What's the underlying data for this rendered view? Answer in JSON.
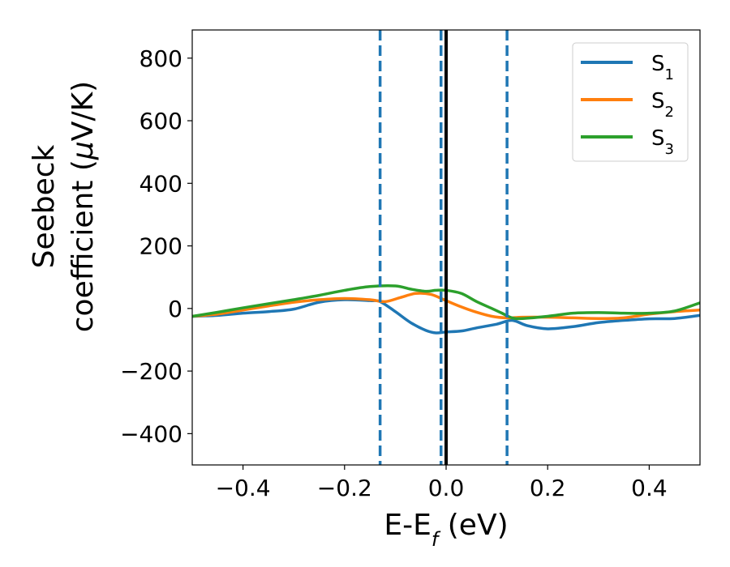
{
  "chart_data": {
    "type": "line",
    "xlabel": {
      "main": "E-E",
      "sub": "f",
      "unit": " (eV)"
    },
    "ylabel": {
      "line1": "Seebeck",
      "line2_a": "coefficient  (",
      "mu": "μ",
      "line2_b": "V/K)"
    },
    "xlim": [
      -0.5,
      0.5
    ],
    "ylim": [
      -500,
      890
    ],
    "xticks": [
      -0.4,
      -0.2,
      0.0,
      0.2,
      0.4
    ],
    "xtick_labels": [
      "−0.4",
      "−0.2",
      "0.0",
      "0.2",
      "0.4"
    ],
    "yticks": [
      -400,
      -200,
      0,
      200,
      400,
      600,
      800
    ],
    "ytick_labels": [
      "−400",
      "−200",
      "0",
      "200",
      "400",
      "600",
      "800"
    ],
    "grid": false,
    "legend_placement": "top-right",
    "vlines": [
      {
        "x": -0.13,
        "style": "dashed",
        "color": "#1f77b4"
      },
      {
        "x": -0.01,
        "style": "dashed",
        "color": "#1f77b4"
      },
      {
        "x": 0.0,
        "style": "solid",
        "color": "#000000"
      },
      {
        "x": 0.12,
        "style": "dashed",
        "color": "#1f77b4"
      }
    ],
    "series": [
      {
        "name": "S",
        "sub": "1",
        "color": "#1f77b4",
        "x": [
          -0.5,
          -0.45,
          -0.4,
          -0.35,
          -0.3,
          -0.25,
          -0.2,
          -0.15,
          -0.13,
          -0.1,
          -0.07,
          -0.04,
          -0.02,
          0.0,
          0.03,
          0.06,
          0.1,
          0.13,
          0.16,
          0.2,
          0.25,
          0.3,
          0.35,
          0.4,
          0.45,
          0.5
        ],
        "y": [
          -25,
          -22,
          -15,
          -10,
          -2,
          20,
          28,
          25,
          22,
          -10,
          -45,
          -70,
          -78,
          -75,
          -72,
          -62,
          -50,
          -38,
          -55,
          -65,
          -58,
          -45,
          -38,
          -33,
          -32,
          -22
        ]
      },
      {
        "name": "S",
        "sub": "2",
        "color": "#ff7f0e",
        "x": [
          -0.5,
          -0.45,
          -0.4,
          -0.35,
          -0.3,
          -0.25,
          -0.2,
          -0.15,
          -0.12,
          -0.09,
          -0.06,
          -0.03,
          0.0,
          0.03,
          0.06,
          0.09,
          0.12,
          0.15,
          0.2,
          0.25,
          0.3,
          0.35,
          0.4,
          0.45,
          0.5
        ],
        "y": [
          -25,
          -18,
          -5,
          8,
          20,
          28,
          32,
          28,
          22,
          35,
          48,
          45,
          25,
          5,
          -12,
          -25,
          -30,
          -28,
          -28,
          -30,
          -32,
          -30,
          -18,
          -10,
          -5
        ]
      },
      {
        "name": "S",
        "sub": "3",
        "color": "#2ca02c",
        "x": [
          -0.5,
          -0.45,
          -0.4,
          -0.35,
          -0.3,
          -0.25,
          -0.2,
          -0.15,
          -0.1,
          -0.07,
          -0.04,
          -0.02,
          0.0,
          0.03,
          0.06,
          0.09,
          0.11,
          0.13,
          0.15,
          0.2,
          0.25,
          0.3,
          0.35,
          0.4,
          0.45,
          0.5
        ],
        "y": [
          -25,
          -12,
          2,
          15,
          28,
          42,
          58,
          70,
          72,
          62,
          55,
          58,
          58,
          48,
          22,
          0,
          -15,
          -30,
          -32,
          -25,
          -15,
          -13,
          -15,
          -15,
          -8,
          18
        ]
      }
    ]
  }
}
